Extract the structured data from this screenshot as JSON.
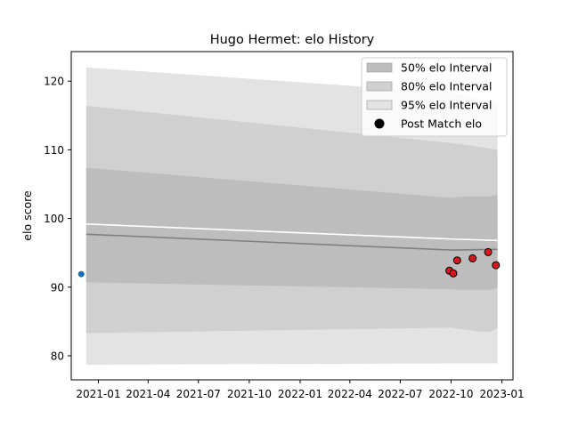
{
  "chart_data": {
    "type": "line",
    "title": "Hugo Hermet: elo History",
    "xlabel": "",
    "ylabel": "elo score",
    "xlim": [
      "2020-11-13",
      "2023-01-21"
    ],
    "ylim": [
      76.5,
      124.3
    ],
    "x_ticks": [
      "2021-01",
      "2021-04",
      "2021-07",
      "2021-10",
      "2022-01",
      "2022-04",
      "2022-07",
      "2022-10",
      "2023-01"
    ],
    "y_ticks": [
      80,
      90,
      100,
      110,
      120
    ],
    "grid": false,
    "legend_position": "top-right",
    "bands": [
      {
        "name": "95% elo Interval",
        "color": "#e3e3e3",
        "x": [
          "2020-12-10",
          "2022-10-01",
          "2022-10-20",
          "2022-11-15",
          "2022-12-09",
          "2022-12-24"
        ],
        "upper": [
          122.0,
          118.3,
          118.0,
          117.5,
          117.0,
          116.8
        ],
        "lower": [
          78.7,
          78.9,
          78.9,
          78.9,
          78.9,
          78.9
        ]
      },
      {
        "name": "80% elo Interval",
        "color": "#d0d0d0",
        "x": [
          "2020-12-10",
          "2022-10-01",
          "2022-10-20",
          "2022-11-15",
          "2022-12-09",
          "2022-12-24"
        ],
        "upper": [
          116.4,
          111.0,
          110.8,
          110.5,
          110.2,
          110.0
        ],
        "lower": [
          83.3,
          84.1,
          83.9,
          83.6,
          83.5,
          84.0
        ]
      },
      {
        "name": "50% elo Interval",
        "color": "#bdbdbd",
        "x": [
          "2020-12-10",
          "2022-10-01",
          "2022-10-20",
          "2022-11-15",
          "2022-12-09",
          "2022-12-24"
        ],
        "upper": [
          107.4,
          103.0,
          103.2,
          103.2,
          103.2,
          103.5
        ],
        "lower": [
          90.7,
          89.7,
          89.6,
          89.6,
          89.6,
          89.9
        ]
      }
    ],
    "series": [
      {
        "name": "",
        "color": "#ffffff",
        "x": [
          "2020-12-10",
          "2022-10-01",
          "2022-12-24"
        ],
        "values": [
          99.2,
          97.0,
          96.8
        ]
      },
      {
        "name": "",
        "color": "#808080",
        "x": [
          "2020-12-10",
          "2022-10-01",
          "2022-12-24"
        ],
        "values": [
          97.7,
          95.4,
          95.5
        ]
      }
    ],
    "points": [
      {
        "name": "Post Match elo",
        "color": "#d7191c",
        "x": [
          "2022-09-28",
          "2022-10-05",
          "2022-10-12",
          "2022-11-09",
          "2022-12-07",
          "2022-12-21"
        ],
        "values": [
          92.4,
          92.0,
          93.9,
          94.2,
          95.1,
          93.2
        ]
      },
      {
        "name": "",
        "color": "#1f6fb2",
        "x": [
          "2020-12-01"
        ],
        "values": [
          91.9
        ]
      }
    ],
    "legend": [
      {
        "label": "50% elo Interval",
        "kind": "patch",
        "color": "#bdbdbd"
      },
      {
        "label": "80% elo Interval",
        "kind": "patch",
        "color": "#d0d0d0"
      },
      {
        "label": "95% elo Interval",
        "kind": "patch",
        "color": "#e3e3e3"
      },
      {
        "label": "Post Match elo",
        "kind": "marker",
        "color": "#000000"
      }
    ]
  }
}
